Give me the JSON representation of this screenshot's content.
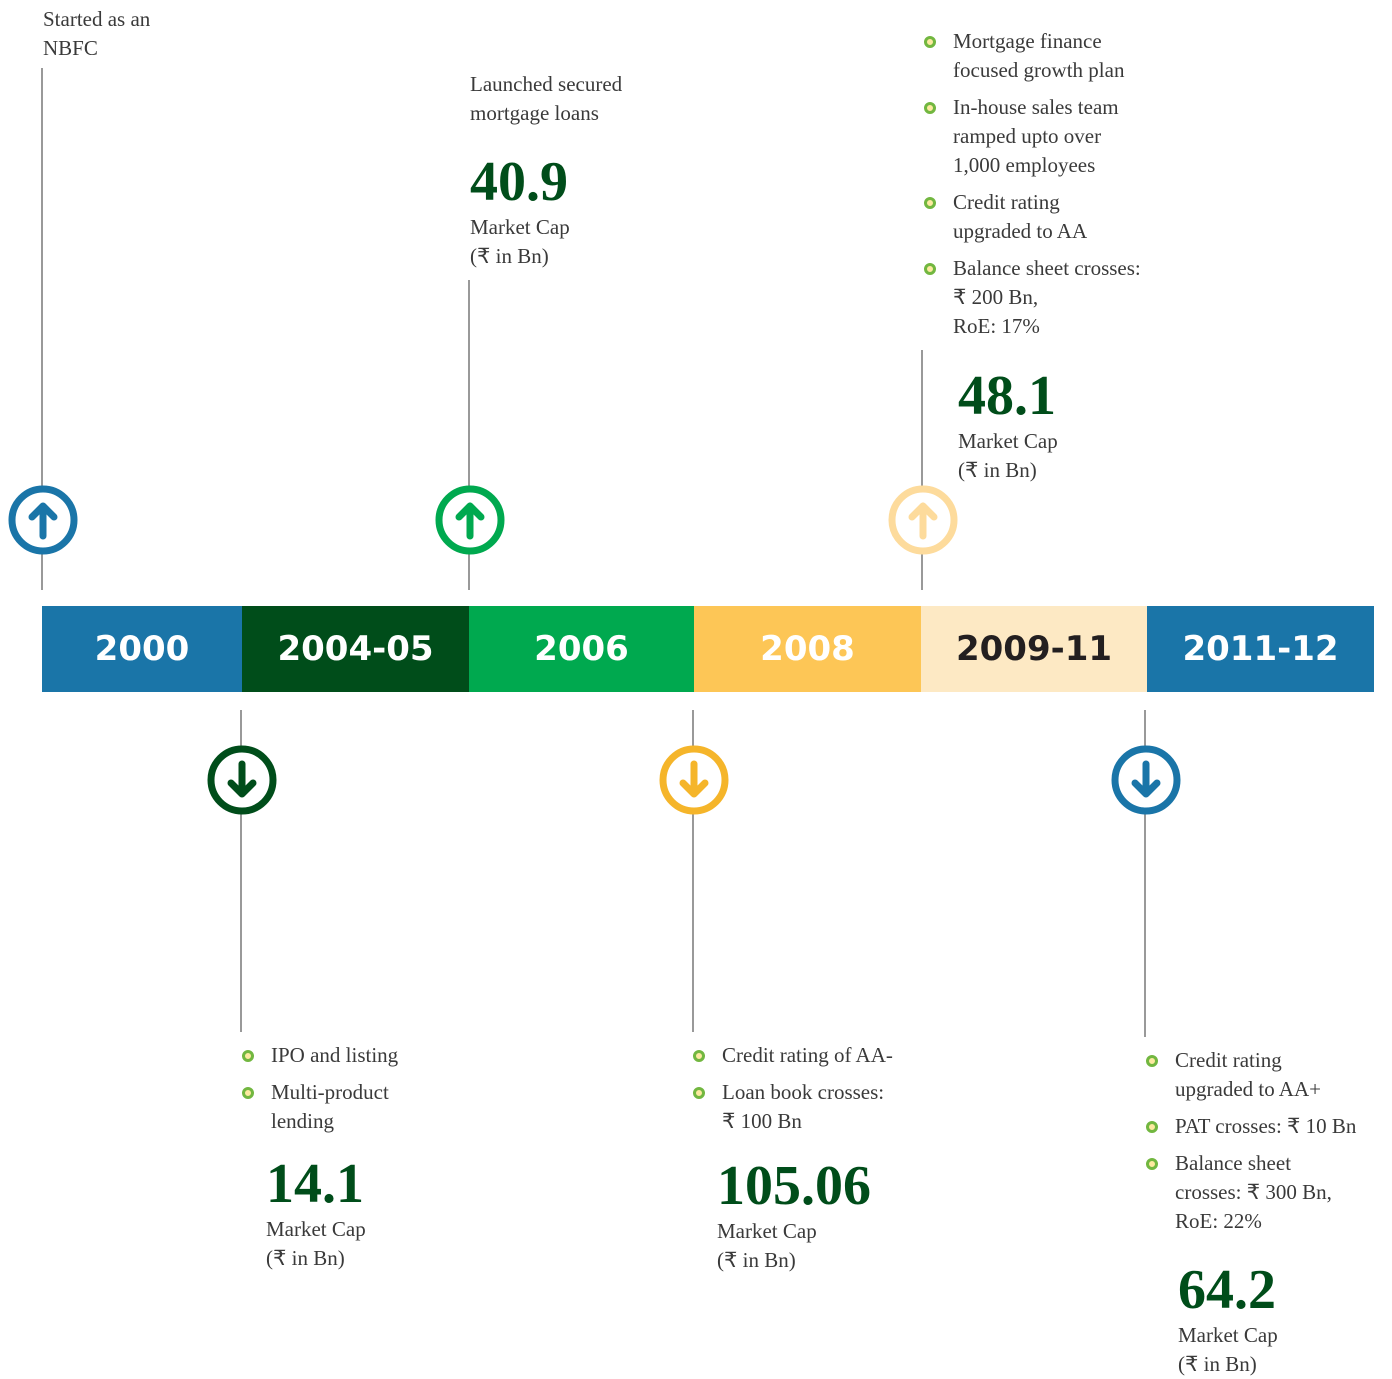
{
  "periods": [
    {
      "label": "2000",
      "color": "#1a75a8",
      "text_color": "#ffffff"
    },
    {
      "label": "2004-05",
      "color": "#004d1a",
      "text_color": "#ffffff"
    },
    {
      "label": "2006",
      "color": "#00a94f",
      "text_color": "#ffffff"
    },
    {
      "label": "2008",
      "color": "#fdc656",
      "text_color": "#ffffff"
    },
    {
      "label": "2009-11",
      "color": "#fde9c4",
      "text_color": "#231f20"
    },
    {
      "label": "2011-12",
      "color": "#1a75a8",
      "text_color": "#ffffff"
    }
  ],
  "events": [
    {
      "period": 0,
      "direction": "up",
      "color": "#1a75a8",
      "lines": [
        "Started as an",
        "NBFC"
      ]
    },
    {
      "period": 2,
      "direction": "up",
      "color": "#00a94f",
      "lines": [
        "Launched secured",
        "mortgage loans"
      ],
      "value": "40.9",
      "caption": [
        "Market Cap",
        "(₹ in Bn)"
      ]
    },
    {
      "period": 4,
      "direction": "up",
      "color": "#fddb9c",
      "bullets": [
        [
          "Mortgage finance",
          "focused  growth plan"
        ],
        [
          "In-house sales team",
          "ramped upto over",
          "1,000 employees"
        ],
        [
          "Credit rating",
          "upgraded to AA"
        ],
        [
          "Balance sheet crosses:",
          "₹ 200 Bn,",
          "RoE: 17%"
        ]
      ],
      "value": "48.1",
      "caption": [
        "Market Cap",
        "(₹ in Bn)"
      ]
    },
    {
      "period": 1,
      "direction": "down",
      "color": "#004d1a",
      "bullets": [
        [
          "IPO and listing"
        ],
        [
          "Multi-product",
          "lending"
        ]
      ],
      "value": "14.1",
      "caption": [
        "Market Cap",
        "(₹ in Bn)"
      ]
    },
    {
      "period": 3,
      "direction": "down",
      "color": "#f5b52a",
      "bullets": [
        [
          "Credit rating of AA-"
        ],
        [
          "Loan book crosses:",
          "₹ 100 Bn"
        ]
      ],
      "value": "105.06",
      "caption": [
        "Market Cap",
        "(₹ in Bn)"
      ]
    },
    {
      "period": 5,
      "direction": "down",
      "color": "#1a75a8",
      "bullets": [
        [
          "Credit rating",
          "upgraded to AA+"
        ],
        [
          "PAT crosses: ₹ 10 Bn"
        ],
        [
          "Balance sheet",
          "crosses: ₹ 300 Bn,",
          "RoE: 22%"
        ]
      ],
      "value": "64.2",
      "caption": [
        "Market Cap",
        "(₹ in Bn)"
      ]
    }
  ]
}
